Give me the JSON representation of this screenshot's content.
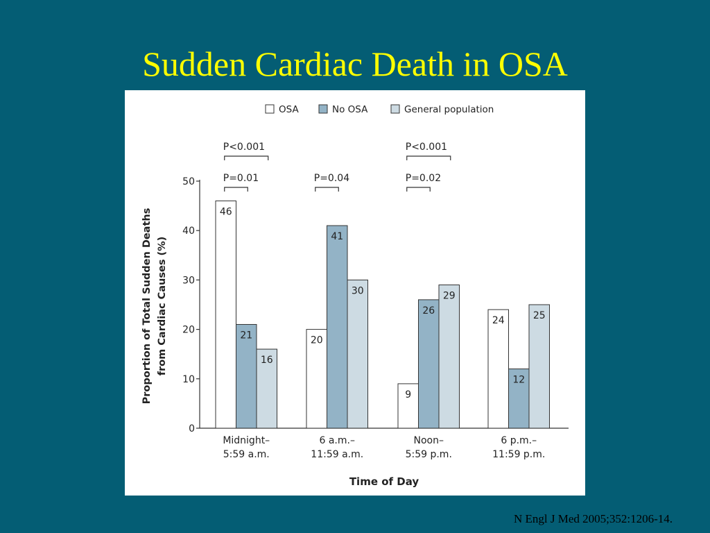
{
  "slide": {
    "title": "Sudden Cardiac Death in OSA",
    "citation": "N Engl J Med 2005;352:1206-14."
  },
  "colors": {
    "background": "#045d74",
    "title": "#ffff00",
    "osa": "#ffffff",
    "no_osa": "#93b3c6",
    "general_population": "#cddbe3"
  },
  "chart_data": {
    "type": "bar",
    "title": "",
    "xlabel": "Time of Day",
    "ylabel": "Proportion of Total Sudden Deaths from Cardiac Causes (%)",
    "ylabel_lines": [
      "Proportion of Total Sudden Deaths",
      "from Cardiac Causes (%)"
    ],
    "ylim": [
      0,
      50
    ],
    "yticks": [
      "0",
      "10",
      "20",
      "30",
      "40",
      "50"
    ],
    "legend_position": "top",
    "categories": [
      [
        "Midnight–",
        "5:59 a.m."
      ],
      [
        "6 a.m.–",
        "11:59 a.m."
      ],
      [
        "Noon–",
        "5:59 p.m."
      ],
      [
        "6 p.m.–",
        "11:59 p.m."
      ]
    ],
    "series": [
      {
        "name": "OSA",
        "color": "#ffffff",
        "values": [
          46,
          20,
          9,
          24
        ]
      },
      {
        "name": "No OSA",
        "color": "#93b3c6",
        "values": [
          21,
          41,
          26,
          12
        ]
      },
      {
        "name": "General population",
        "color": "#cddbe3",
        "values": [
          16,
          30,
          29,
          25
        ]
      }
    ],
    "annotations": [
      {
        "text": "P<0.001",
        "group": 0,
        "from_series": 0,
        "to_series": 2,
        "level": "upper"
      },
      {
        "text": "P=0.01",
        "group": 0,
        "from_series": 0,
        "to_series": 1,
        "level": "lower"
      },
      {
        "text": "P=0.04",
        "group": 1,
        "from_series": 0,
        "to_series": 1,
        "level": "lower"
      },
      {
        "text": "P<0.001",
        "group": 2,
        "from_series": 0,
        "to_series": 2,
        "level": "upper"
      },
      {
        "text": "P=0.02",
        "group": 2,
        "from_series": 0,
        "to_series": 1,
        "level": "lower"
      }
    ]
  }
}
